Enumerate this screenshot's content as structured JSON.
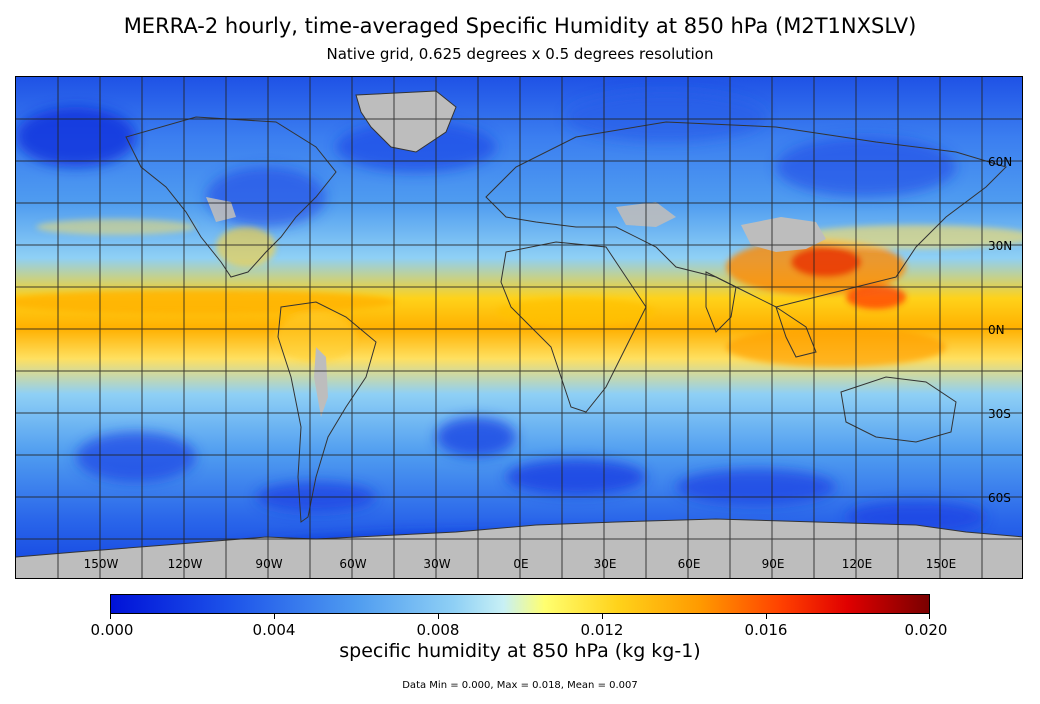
{
  "title": "MERRA-2 hourly, time-averaged Specific Humidity at 850 hPa (M2T1NXSLV)",
  "subtitle": "Native grid, 0.625 degrees x 0.5 degrees resolution",
  "lon_labels": [
    "150W",
    "120W",
    "90W",
    "60W",
    "30W",
    "0E",
    "30E",
    "60E",
    "90E",
    "120E",
    "150E"
  ],
  "lat_labels": [
    "60N",
    "30N",
    "0N",
    "30S",
    "60S"
  ],
  "colorbar": {
    "ticks": [
      "0.000",
      "0.004",
      "0.008",
      "0.012",
      "0.016",
      "0.020"
    ],
    "label": "specific humidity at 850 hPa (kg kg-1)",
    "min": 0.0,
    "max": 0.02,
    "colors": [
      "#0012d8",
      "#1e55ea",
      "#4f9cf0",
      "#8fd0f5",
      "#c8f0f5",
      "#ffff70",
      "#ffd21a",
      "#ff9a00",
      "#ff4000",
      "#e00000",
      "#7a0000"
    ]
  },
  "stats": "Data Min = 0.000, Max = 0.018, Mean = 0.007",
  "missing_color": "#bdbdbd"
}
